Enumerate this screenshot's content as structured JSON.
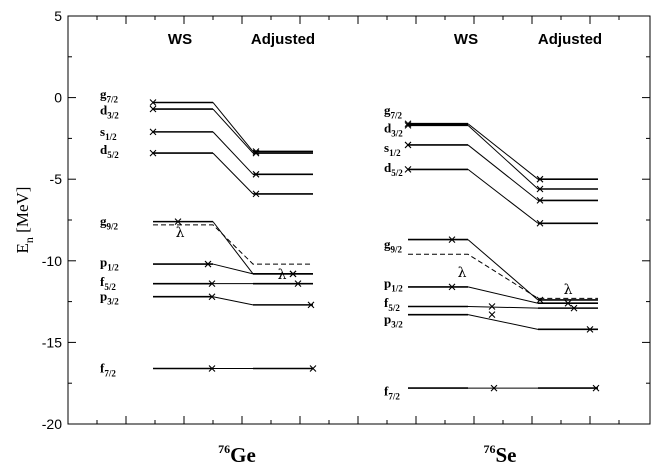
{
  "chart_data": {
    "type": "level-scheme",
    "ylabel": {
      "main": "E",
      "sub": "n",
      "unit": " [MeV]"
    },
    "ylim": [
      -20,
      5
    ],
    "yticks": [
      5,
      0,
      -5,
      -10,
      -15,
      -20
    ],
    "grid": false,
    "lambda_label": "λ",
    "panels": [
      {
        "nucleus": {
          "mass": "76",
          "symbol": "Ge"
        },
        "column_headers": [
          "WS",
          "Adjusted"
        ],
        "levels": [
          {
            "orbital": "g",
            "j": "7/2",
            "ws": -0.3,
            "adjusted": -3.3
          },
          {
            "orbital": "d",
            "j": "3/2",
            "ws": -0.7,
            "adjusted": -3.4
          },
          {
            "orbital": "s",
            "j": "1/2",
            "ws": -2.1,
            "adjusted": -4.7
          },
          {
            "orbital": "d",
            "j": "5/2",
            "ws": -3.4,
            "adjusted": -5.9
          },
          {
            "orbital": "g",
            "j": "9/2",
            "ws": -7.6,
            "adjusted": -10.8
          },
          {
            "orbital": "p",
            "j": "1/2",
            "ws": -10.2,
            "adjusted": -10.8
          },
          {
            "orbital": "f",
            "j": "5/2",
            "ws": -11.4,
            "adjusted": -11.4
          },
          {
            "orbital": "p",
            "j": "3/2",
            "ws": -12.2,
            "adjusted": -12.7
          },
          {
            "orbital": "f",
            "j": "7/2",
            "ws": -16.6,
            "adjusted": -16.6
          }
        ],
        "fermi_level": {
          "ws": -7.8,
          "adjusted": -10.2
        }
      },
      {
        "nucleus": {
          "mass": "76",
          "symbol": "Se"
        },
        "column_headers": [
          "WS",
          "Adjusted"
        ],
        "levels": [
          {
            "orbital": "g",
            "j": "7/2",
            "ws": -1.6,
            "adjusted": -5.0
          },
          {
            "orbital": "d",
            "j": "3/2",
            "ws": -1.7,
            "adjusted": -5.6
          },
          {
            "orbital": "s",
            "j": "1/2",
            "ws": -2.9,
            "adjusted": -6.3
          },
          {
            "orbital": "d",
            "j": "5/2",
            "ws": -4.4,
            "adjusted": -7.7
          },
          {
            "orbital": "g",
            "j": "9/2",
            "ws": -8.7,
            "adjusted": -12.4
          },
          {
            "orbital": "p",
            "j": "1/2",
            "ws": -11.6,
            "adjusted": -12.6
          },
          {
            "orbital": "f",
            "j": "5/2",
            "ws": -12.8,
            "adjusted": -12.9
          },
          {
            "orbital": "p",
            "j": "3/2",
            "ws": -13.3,
            "adjusted": -14.2
          },
          {
            "orbital": "f",
            "j": "7/2",
            "ws": -17.8,
            "adjusted": -17.8
          }
        ],
        "fermi_level": {
          "ws": -9.6,
          "adjusted": -12.3
        }
      }
    ]
  }
}
